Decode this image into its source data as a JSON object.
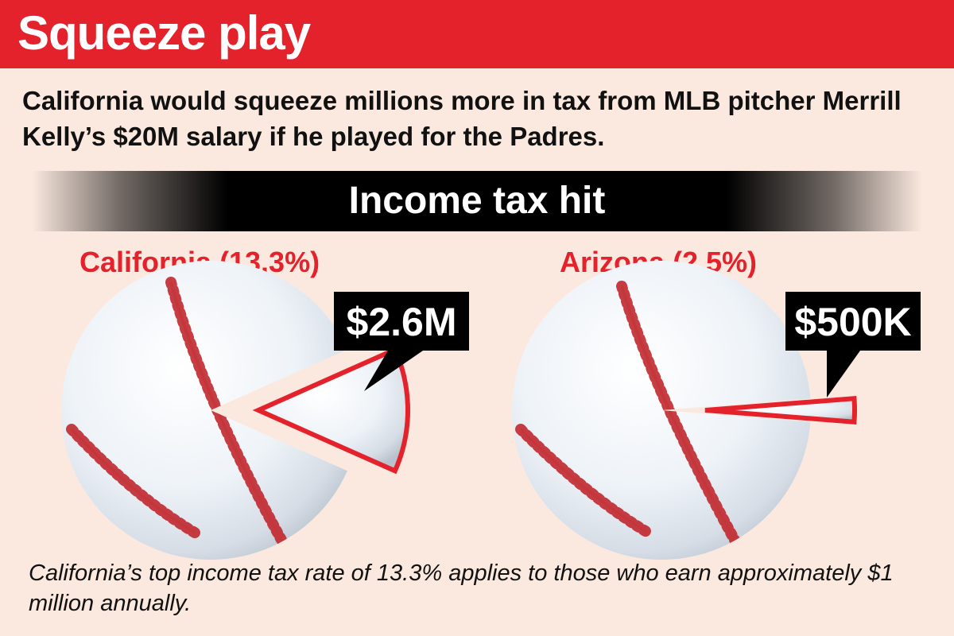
{
  "header": {
    "title": "Squeeze play"
  },
  "subtitle": "California would squeeze millions more in tax from MLB pitcher Merrill Kelly’s $20M salary if he played for the Padres.",
  "band_title": "Income tax hit",
  "footnote": "California’s top income tax rate of 13.3% applies to those who earn approximately $1 million annually.",
  "colors": {
    "accent": "#e3222c",
    "background": "#fbe9df",
    "label_box": "#000000",
    "ball": "#eef3f8",
    "stitch": "#c0282e"
  },
  "chart_data": [
    {
      "type": "pie",
      "title": "California (13.3%)",
      "rate_percent": 13.3,
      "tax_label": "$2.6M",
      "salary_label": "$20M",
      "slices": [
        {
          "label": "$2.6M",
          "value": 13.3
        },
        {
          "label": "",
          "value": 86.7
        }
      ]
    },
    {
      "type": "pie",
      "title": "Arizona (2.5%)",
      "rate_percent": 2.5,
      "tax_label": "$500K",
      "salary_label": "$20M",
      "slices": [
        {
          "label": "$500K",
          "value": 2.5
        },
        {
          "label": "",
          "value": 97.5
        }
      ]
    }
  ]
}
